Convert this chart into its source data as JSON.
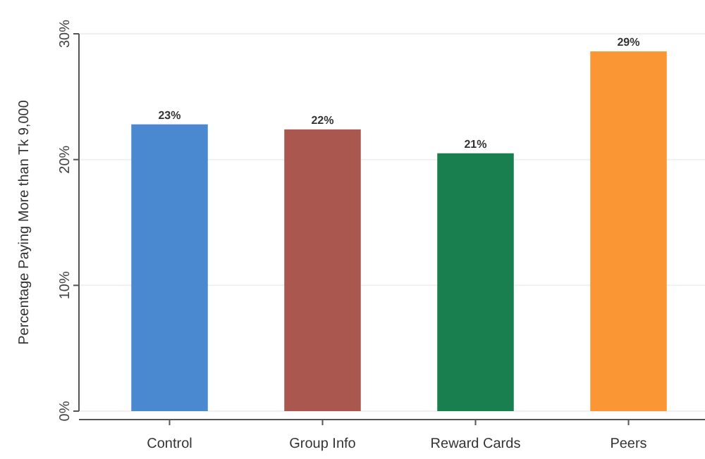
{
  "chart_data": {
    "type": "bar",
    "ylabel": "Percentage Paying More than Tk 9,000",
    "categories": [
      "Control",
      "Group Info",
      "Reward Cards",
      "Peers"
    ],
    "values": [
      22.8,
      22.4,
      20.5,
      28.6
    ],
    "colors": [
      "#4a88d0",
      "#a9574f",
      "#1a7f4f",
      "#fb9634"
    ],
    "value_labels": [
      "23%",
      "22%",
      "21%",
      "29%"
    ],
    "ylim": [
      0,
      30
    ],
    "yticks": [
      {
        "value": 0,
        "label": "0%"
      },
      {
        "value": 10,
        "label": "10%"
      },
      {
        "value": 20,
        "label": "20%"
      },
      {
        "value": 30,
        "label": "30%"
      }
    ],
    "grid": "y"
  }
}
